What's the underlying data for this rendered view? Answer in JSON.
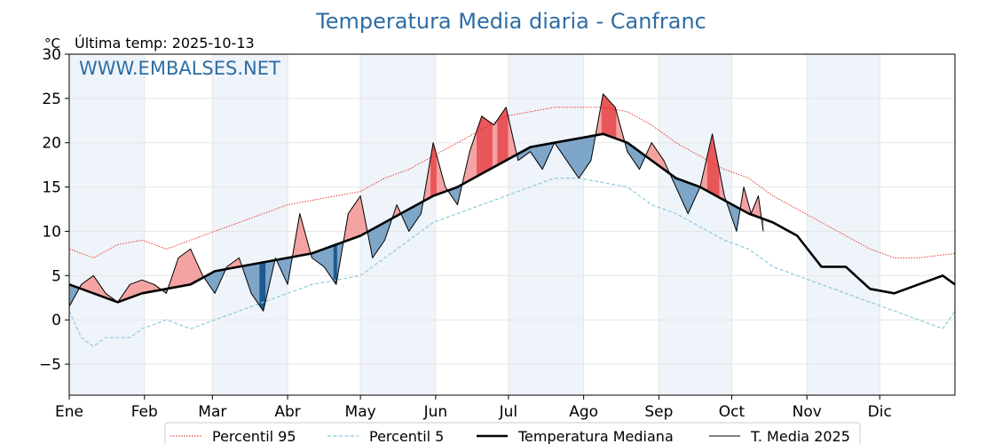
{
  "chart_data": {
    "type": "line",
    "title": "Temperatura Media diaria - Canfranc",
    "unit_label": "°C",
    "subtitle": "Última temp: 2025-10-13",
    "watermark": "WWW.EMBALSES.NET",
    "ylim": [
      -8.5,
      30
    ],
    "yticks": [
      -5,
      0,
      5,
      10,
      15,
      20,
      25,
      30
    ],
    "ytick_labels": [
      "−5",
      "0",
      "5",
      "10",
      "15",
      "20",
      "25",
      "30"
    ],
    "x_domain_days": [
      0,
      365
    ],
    "months": [
      {
        "label": "Ene",
        "start_day": 0
      },
      {
        "label": "Feb",
        "start_day": 31
      },
      {
        "label": "Mar",
        "start_day": 59
      },
      {
        "label": "Abr",
        "start_day": 90
      },
      {
        "label": "May",
        "start_day": 120
      },
      {
        "label": "Jun",
        "start_day": 151
      },
      {
        "label": "Jul",
        "start_day": 181
      },
      {
        "label": "Ago",
        "start_day": 212
      },
      {
        "label": "Sep",
        "start_day": 243
      },
      {
        "label": "Oct",
        "start_day": 273
      },
      {
        "label": "Nov",
        "start_day": 304
      },
      {
        "label": "Dic",
        "start_day": 334
      }
    ],
    "grid": true,
    "legend_position": "bottom-center",
    "colors": {
      "p95": "#e8251a",
      "p5": "#8cc8dc",
      "median": "#000000",
      "year": "#000000",
      "above_fill": "#f4a3a3",
      "above_fill_strong": "#e8575a",
      "below_fill": "#7ea6c8",
      "below_fill_strong": "#1f5b8f",
      "shade": "#eef4fa"
    },
    "series": [
      {
        "name": "Percentil 95",
        "style": "dotted",
        "x": [
          0,
          10,
          20,
          30,
          40,
          50,
          60,
          70,
          80,
          90,
          100,
          110,
          120,
          130,
          140,
          150,
          160,
          170,
          180,
          190,
          200,
          210,
          220,
          230,
          240,
          250,
          260,
          270,
          280,
          290,
          300,
          310,
          320,
          330,
          340,
          350,
          365
        ],
        "y": [
          8,
          7,
          8.5,
          9,
          8,
          9,
          10,
          11,
          12,
          13,
          13.5,
          14,
          14.5,
          16,
          17,
          18.5,
          20,
          21.5,
          23,
          23.5,
          24,
          24,
          24,
          23.5,
          22,
          20,
          18.5,
          17,
          16,
          14,
          12.5,
          11,
          9.5,
          8,
          7,
          7,
          7.5
        ]
      },
      {
        "name": "Percentil 5",
        "style": "dashed",
        "x": [
          0,
          5,
          10,
          15,
          20,
          25,
          30,
          40,
          50,
          60,
          70,
          80,
          90,
          100,
          110,
          120,
          130,
          140,
          150,
          160,
          170,
          180,
          190,
          200,
          210,
          220,
          230,
          240,
          250,
          260,
          270,
          280,
          290,
          300,
          310,
          320,
          330,
          340,
          350,
          360,
          365
        ],
        "y": [
          1,
          -2,
          -3,
          -2,
          -2,
          -2,
          -1,
          0,
          -1,
          0,
          1,
          2,
          3,
          4,
          4.5,
          5,
          7,
          9,
          11,
          12,
          13,
          14,
          15,
          16,
          16,
          15.5,
          15,
          13,
          12,
          10.5,
          9,
          8,
          6,
          5,
          4,
          3,
          2,
          1,
          0,
          -1,
          1
        ]
      },
      {
        "name": "Temperatura Mediana",
        "style": "solid-thick",
        "x": [
          0,
          10,
          20,
          30,
          40,
          50,
          60,
          70,
          80,
          90,
          100,
          110,
          120,
          130,
          140,
          150,
          160,
          170,
          180,
          190,
          200,
          210,
          220,
          230,
          240,
          250,
          260,
          270,
          280,
          290,
          300,
          310,
          320,
          330,
          340,
          350,
          360,
          365
        ],
        "y": [
          4,
          3,
          2,
          3,
          3.5,
          4,
          5.5,
          6,
          6.5,
          7,
          7.5,
          8.5,
          9.5,
          11,
          12.5,
          14,
          15,
          16.5,
          18,
          19.5,
          20,
          20.5,
          21,
          20,
          18,
          16,
          15,
          13.5,
          12,
          11,
          9.5,
          6,
          6,
          3.5,
          3,
          4,
          5,
          4
        ]
      },
      {
        "name": "T. Media 2025",
        "style": "solid-thin",
        "x": [
          0,
          5,
          10,
          15,
          20,
          25,
          30,
          35,
          40,
          45,
          50,
          55,
          60,
          65,
          70,
          75,
          80,
          85,
          90,
          95,
          100,
          105,
          110,
          115,
          120,
          125,
          130,
          135,
          140,
          145,
          150,
          155,
          160,
          165,
          170,
          175,
          180,
          185,
          190,
          195,
          200,
          205,
          210,
          215,
          220,
          225,
          230,
          235,
          240,
          245,
          250,
          255,
          260,
          265,
          270,
          275,
          278,
          281,
          284,
          286
        ],
        "y": [
          1.5,
          4,
          5,
          3,
          2,
          4,
          4.5,
          4,
          3,
          7,
          8,
          5,
          3,
          6,
          7,
          3,
          1,
          7,
          4,
          12,
          7,
          6,
          4,
          12,
          14,
          7,
          9,
          13,
          10,
          12,
          20,
          15,
          13,
          19,
          23,
          22,
          24,
          18,
          19,
          17,
          20,
          18,
          16,
          18,
          25.5,
          24,
          19,
          17,
          20,
          18,
          15,
          12,
          15,
          21,
          14,
          10,
          15,
          12,
          14,
          10
        ]
      }
    ]
  }
}
